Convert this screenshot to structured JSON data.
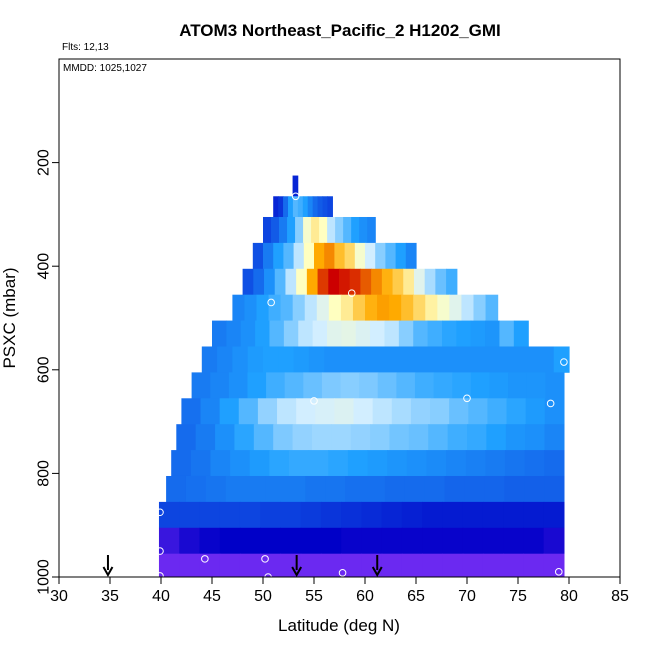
{
  "chart_data": {
    "type": "heatmap",
    "title": "ATOM3 Northeast_Pacific_2 H1202_GMI",
    "notes": [
      "Flts: 12,13",
      "MMDD: 1025,1027"
    ],
    "xlabel": "Latitude (deg N)",
    "ylabel": "PSXC (mbar)",
    "xlim": [
      30,
      85
    ],
    "ylim": [
      1000,
      0
    ],
    "y_inverted": true,
    "grid": false,
    "x_ticks": [
      30,
      35,
      40,
      45,
      50,
      55,
      60,
      65,
      70,
      75,
      80,
      85
    ],
    "y_ticks": [
      200,
      400,
      600,
      800,
      1000
    ],
    "colors": {
      "low": "#7b2ff7",
      "mid_low": "#0000c8",
      "mid": "#1fa0ff",
      "mid_high": "#ffffc0",
      "high": "#cc0000"
    },
    "bands": [
      {
        "p_top": 225,
        "p_bot": 265,
        "lat_min": 52.9,
        "lat_max": 53.4,
        "values": [
          0.22
        ]
      },
      {
        "p_top": 265,
        "p_bot": 305,
        "lat_min": 51.0,
        "lat_max": 56.8,
        "values": [
          0.22,
          0.25,
          0.35,
          0.45,
          0.5,
          0.48,
          0.45,
          0.4,
          0.35,
          0.32,
          0.3,
          0.28
        ]
      },
      {
        "p_top": 305,
        "p_bot": 355,
        "lat_min": 50.0,
        "lat_max": 61.0,
        "values": [
          0.28,
          0.32,
          0.38,
          0.45,
          0.55,
          0.7,
          0.75,
          0.72,
          0.6,
          0.55,
          0.5,
          0.45,
          0.42,
          0.4
        ]
      },
      {
        "p_top": 355,
        "p_bot": 405,
        "lat_min": 49.0,
        "lat_max": 65.0,
        "values": [
          0.3,
          0.38,
          0.45,
          0.5,
          0.6,
          0.72,
          0.85,
          0.88,
          0.82,
          0.78,
          0.7,
          0.62,
          0.55,
          0.5,
          0.45,
          0.4
        ]
      },
      {
        "p_top": 405,
        "p_bot": 455,
        "lat_min": 48.0,
        "lat_max": 69.0,
        "values": [
          0.3,
          0.35,
          0.42,
          0.5,
          0.6,
          0.72,
          0.85,
          0.95,
          1.0,
          0.98,
          0.96,
          0.92,
          0.88,
          0.84,
          0.8,
          0.75,
          0.65,
          0.58,
          0.52,
          0.48
        ]
      },
      {
        "p_top": 455,
        "p_bot": 505,
        "lat_min": 47.0,
        "lat_max": 73.0,
        "values": [
          0.4,
          0.42,
          0.45,
          0.48,
          0.5,
          0.55,
          0.6,
          0.65,
          0.72,
          0.75,
          0.8,
          0.84,
          0.86,
          0.85,
          0.82,
          0.78,
          0.74,
          0.7,
          0.65,
          0.6,
          0.55,
          0.5
        ]
      },
      {
        "p_top": 505,
        "p_bot": 555,
        "lat_min": 45.0,
        "lat_max": 76.0,
        "values": [
          0.38,
          0.4,
          0.42,
          0.45,
          0.5,
          0.55,
          0.6,
          0.62,
          0.65,
          0.66,
          0.64,
          0.62,
          0.6,
          0.55,
          0.5,
          0.48,
          0.46,
          0.45,
          0.44,
          0.43,
          0.5,
          0.45
        ]
      },
      {
        "p_top": 555,
        "p_bot": 605,
        "lat_min": 44.0,
        "lat_max": 80.0,
        "values": [
          0.38,
          0.4,
          0.42,
          0.44,
          0.45,
          0.45,
          0.44,
          0.43,
          0.42,
          0.42,
          0.42,
          0.42,
          0.42,
          0.42,
          0.42,
          0.42,
          0.42,
          0.42,
          0.42,
          0.42,
          0.42,
          0.42,
          0.42,
          0.45
        ]
      },
      {
        "p_top": 605,
        "p_bot": 655,
        "lat_min": 43.0,
        "lat_max": 79.5,
        "values": [
          0.38,
          0.4,
          0.42,
          0.45,
          0.48,
          0.5,
          0.52,
          0.54,
          0.55,
          0.54,
          0.52,
          0.5,
          0.48,
          0.47,
          0.46,
          0.45,
          0.44,
          0.43,
          0.43,
          0.42
        ]
      },
      {
        "p_top": 655,
        "p_bot": 705,
        "lat_min": 42.0,
        "lat_max": 79.5,
        "values": [
          0.36,
          0.4,
          0.45,
          0.5,
          0.56,
          0.6,
          0.62,
          0.63,
          0.64,
          0.62,
          0.6,
          0.58,
          0.56,
          0.55,
          0.52,
          0.5,
          0.48,
          0.46,
          0.44,
          0.42
        ]
      },
      {
        "p_top": 705,
        "p_bot": 755,
        "lat_min": 41.5,
        "lat_max": 79.5,
        "values": [
          0.35,
          0.38,
          0.42,
          0.46,
          0.5,
          0.54,
          0.56,
          0.57,
          0.57,
          0.56,
          0.55,
          0.53,
          0.52,
          0.5,
          0.48,
          0.47,
          0.45,
          0.43,
          0.42,
          0.4
        ]
      },
      {
        "p_top": 755,
        "p_bot": 805,
        "lat_min": 41.0,
        "lat_max": 79.5,
        "values": [
          0.35,
          0.37,
          0.4,
          0.42,
          0.44,
          0.46,
          0.47,
          0.47,
          0.46,
          0.45,
          0.44,
          0.43,
          0.42,
          0.41,
          0.4,
          0.39,
          0.38,
          0.37,
          0.36,
          0.35
        ]
      },
      {
        "p_top": 805,
        "p_bot": 855,
        "lat_min": 40.5,
        "lat_max": 79.5,
        "values": [
          0.35,
          0.36,
          0.37,
          0.38,
          0.38,
          0.38,
          0.38,
          0.37,
          0.37,
          0.36,
          0.36,
          0.35,
          0.35,
          0.35,
          0.34,
          0.34,
          0.34,
          0.33,
          0.33,
          0.33
        ]
      },
      {
        "p_top": 855,
        "p_bot": 905,
        "lat_min": 39.8,
        "lat_max": 79.5,
        "values": [
          0.28,
          0.28,
          0.28,
          0.28,
          0.28,
          0.27,
          0.27,
          0.26,
          0.25,
          0.24,
          0.23,
          0.22,
          0.21,
          0.2,
          0.2,
          0.2,
          0.2,
          0.2,
          0.2,
          0.2
        ]
      },
      {
        "p_top": 905,
        "p_bot": 955,
        "lat_min": 39.8,
        "lat_max": 79.5,
        "values": [
          0.08,
          0.12,
          0.14,
          0.15,
          0.15,
          0.15,
          0.15,
          0.15,
          0.15,
          0.14,
          0.14,
          0.14,
          0.14,
          0.14,
          0.14,
          0.14,
          0.14,
          0.14,
          0.14,
          0.12
        ]
      },
      {
        "p_top": 955,
        "p_bot": 1000,
        "lat_min": 39.8,
        "lat_max": 79.5,
        "values": [
          0.02,
          0.02,
          0.02,
          0.02,
          0.02,
          0.02,
          0.02,
          0.02,
          0.02,
          0.02,
          0.02,
          0.02,
          0.02,
          0.02,
          0.02,
          0.02,
          0.02,
          0.02,
          0.02,
          0.02
        ]
      }
    ],
    "observations": [
      [
        53.2,
        265
      ],
      [
        50.8,
        470
      ],
      [
        58.7,
        452
      ],
      [
        55.0,
        660
      ],
      [
        70.0,
        655
      ],
      [
        78.2,
        665
      ],
      [
        79.5,
        585
      ],
      [
        39.9,
        875
      ],
      [
        39.9,
        950
      ],
      [
        44.3,
        965
      ],
      [
        50.2,
        965
      ],
      [
        39.9,
        998
      ],
      [
        50.5,
        1000
      ],
      [
        57.8,
        992
      ],
      [
        79.0,
        990
      ]
    ],
    "arrows": [
      {
        "x": 34.8,
        "label": ""
      },
      {
        "x": 61.2,
        "label": ""
      },
      {
        "x": 53.3,
        "label": ""
      }
    ]
  }
}
